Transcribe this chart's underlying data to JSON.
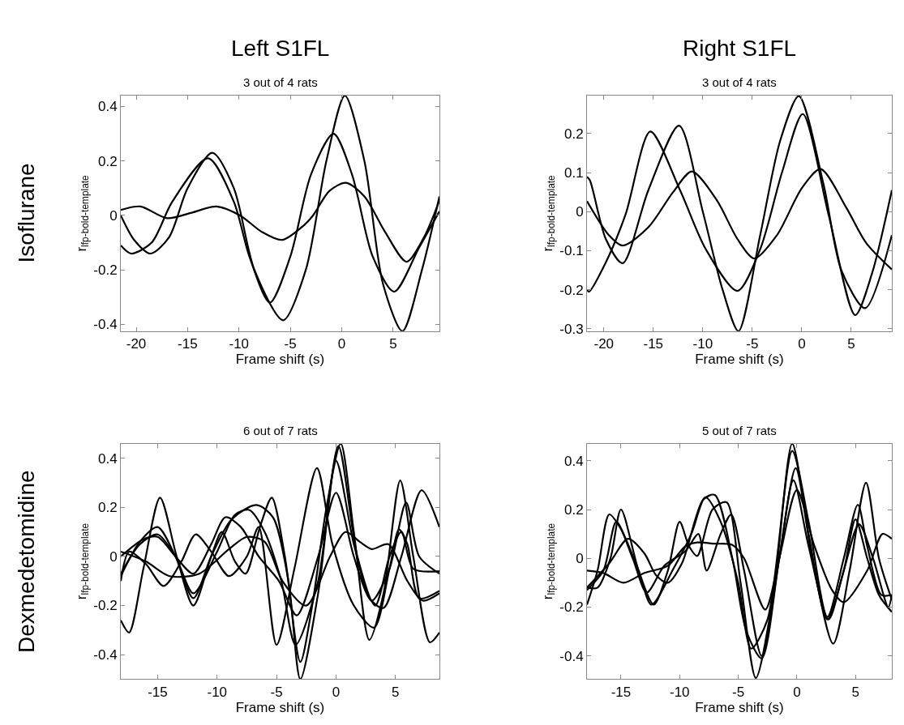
{
  "chart_data": [
    {
      "type": "line",
      "title": "3 out of 4 rats",
      "xlabel": "Frame shift (s)",
      "ylabel": "r$_{lfp-bold-template}$",
      "annotations": [
        "Left S1FL",
        "Isoflurane"
      ],
      "xlim": [
        -21.5,
        9.5
      ],
      "ylim": [
        -0.425,
        0.44
      ],
      "xticks": [
        -20,
        -15,
        -10,
        -5,
        0,
        5
      ],
      "yticks": [
        -0.4,
        -0.2,
        0,
        0.2,
        0.4
      ],
      "marker": "none",
      "line_style": "solid",
      "series": [
        {
          "color": "#000000",
          "x": [
            -21.5,
            -20.2,
            -18.6,
            -16.8,
            -15,
            -12.6,
            -10.5,
            -8.5,
            -5.7,
            -3.5,
            -1.5,
            0.3,
            2.2,
            4,
            5.9,
            7.8,
            9.5
          ],
          "values": [
            0.0,
            -0.09,
            -0.14,
            -0.08,
            0.1,
            0.23,
            0.1,
            -0.2,
            -0.385,
            -0.2,
            0.2,
            0.44,
            0.2,
            -0.25,
            -0.425,
            -0.2,
            0.07
          ]
        },
        {
          "color": "#000000",
          "x": [
            -21.5,
            -20.5,
            -18.5,
            -16.5,
            -13,
            -10.5,
            -9,
            -7,
            -5,
            -3,
            -0.8,
            1,
            3,
            5.1,
            7.5,
            9.5
          ],
          "values": [
            -0.11,
            -0.14,
            -0.1,
            0.05,
            0.21,
            0.05,
            -0.15,
            -0.32,
            -0.15,
            0.15,
            0.3,
            0.15,
            -0.15,
            -0.28,
            -0.12,
            0.015
          ]
        },
        {
          "color": "#000000",
          "x": [
            -21.5,
            -19.6,
            -17,
            -14.6,
            -12.2,
            -9.9,
            -7.8,
            -5.8,
            -3.8,
            -2.8,
            -1.2,
            0.4,
            2.2,
            4.2,
            6.3,
            8,
            9.5
          ],
          "values": [
            0.02,
            0.033,
            -0.01,
            0.01,
            0.033,
            0.0,
            -0.06,
            -0.09,
            -0.04,
            0.0,
            0.09,
            0.12,
            0.07,
            -0.06,
            -0.17,
            -0.08,
            0.055
          ]
        }
      ]
    },
    {
      "type": "line",
      "title": "3 out of 4 rats",
      "xlabel": "Frame shift (s)",
      "ylabel": "r$_{lfp-bold-template}$",
      "annotations": [
        "Right S1FL"
      ],
      "xlim": [
        -21.7,
        9.1
      ],
      "ylim": [
        -0.306,
        0.297
      ],
      "xticks": [
        -20,
        -15,
        -10,
        -5,
        0,
        5
      ],
      "yticks": [
        -0.3,
        -0.2,
        -0.1,
        0,
        0.1,
        0.2
      ],
      "marker": "none",
      "line_style": "solid",
      "series": [
        {
          "color": "#000000",
          "x": [
            -21.7,
            -21.5,
            -19.8,
            -17.8,
            -15.3,
            -12.3,
            -9.7,
            -6.5,
            -4.2,
            -2,
            0.1,
            2.7,
            5.4,
            7.1,
            9.1
          ],
          "values": [
            -0.2,
            -0.205,
            -0.13,
            -0.007,
            0.205,
            0.055,
            -0.096,
            -0.203,
            -0.096,
            0.1,
            0.25,
            -0.007,
            -0.265,
            -0.158,
            0.055
          ]
        },
        {
          "color": "#000000",
          "x": [
            -21.7,
            -21.4,
            -19.8,
            -18.1,
            -15.5,
            -12.4,
            -10,
            -8,
            -6.4,
            -4.2,
            -2.2,
            -0.3,
            2.2,
            4,
            6.4,
            9.1
          ],
          "values": [
            0.089,
            0.08,
            -0.07,
            -0.132,
            0.055,
            0.22,
            0.0,
            -0.2,
            -0.306,
            -0.06,
            0.18,
            0.296,
            0.07,
            -0.15,
            -0.247,
            -0.06
          ]
        },
        {
          "color": "#000000",
          "x": [
            -21.7,
            -19.5,
            -18.1,
            -15.5,
            -13,
            -11.1,
            -8.6,
            -6.5,
            -4.8,
            -2.5,
            0,
            1.9,
            4.5,
            6.5,
            9.1
          ],
          "values": [
            0.027,
            -0.06,
            -0.087,
            -0.04,
            0.05,
            0.103,
            0.03,
            -0.07,
            -0.12,
            -0.06,
            0.06,
            0.109,
            0.01,
            -0.08,
            -0.148
          ]
        }
      ]
    },
    {
      "type": "line",
      "title": "6 out of 7 rats",
      "xlabel": "Frame shift (s)",
      "ylabel": "r$_{lfp-bold-template}$",
      "annotations": [
        "Dexmedetomidine"
      ],
      "xlim": [
        -18.1,
        8.7
      ],
      "ylim": [
        -0.5,
        0.46
      ],
      "xticks": [
        -15,
        -10,
        -5,
        0,
        5
      ],
      "yticks": [
        -0.4,
        -0.2,
        0,
        0.2,
        0.4
      ],
      "marker": "none",
      "line_style": "solid",
      "series": [
        {
          "color": "#000000",
          "x": [
            -18.1,
            -17.4,
            -16.2,
            -14.8,
            -13.4,
            -12,
            -10.5,
            -9.6,
            -8.5,
            -7.6,
            -6.4,
            -5.4,
            -4.3,
            -3,
            -2,
            -0.8,
            0.4,
            1.5,
            2.8,
            4,
            5.4,
            6.5,
            7.9,
            8.7
          ],
          "values": [
            -0.26,
            -0.31,
            -0.05,
            0.24,
            0.0,
            -0.2,
            0.0,
            0.1,
            -0.02,
            -0.07,
            0.12,
            0.24,
            0.0,
            -0.43,
            -0.2,
            0.2,
            0.46,
            0.1,
            -0.34,
            -0.15,
            0.31,
            0.0,
            -0.35,
            -0.31
          ]
        },
        {
          "color": "#000000",
          "x": [
            -18.1,
            -17.4,
            -16,
            -14.5,
            -13,
            -11.8,
            -10.5,
            -9,
            -7.5,
            -6.5,
            -5,
            -3.5,
            -1.6,
            -0.3,
            1.5,
            3.2,
            4.5,
            5.3,
            6,
            7,
            8.7
          ],
          "values": [
            -0.1,
            0.02,
            -0.03,
            -0.12,
            -0.02,
            0.09,
            0.02,
            -0.08,
            0.0,
            0.12,
            -0.36,
            -0.05,
            0.36,
            0.05,
            -0.2,
            -0.29,
            -0.05,
            0.11,
            0.05,
            -0.17,
            -0.14
          ]
        },
        {
          "color": "#000000",
          "x": [
            -18.1,
            -16.5,
            -15,
            -13.5,
            -12,
            -10,
            -8.5,
            -7.3,
            -6,
            -4.6,
            -3.4,
            -1.5,
            0,
            1.5,
            3,
            4.5,
            5.9,
            7,
            8.7
          ],
          "values": [
            -0.07,
            0.05,
            0.09,
            0.0,
            -0.15,
            0.02,
            0.17,
            0.19,
            0.1,
            -0.1,
            -0.36,
            -0.1,
            0.39,
            0.05,
            -0.18,
            -0.05,
            0.22,
            0.0,
            -0.07
          ]
        },
        {
          "color": "#000000",
          "x": [
            -18.1,
            -16.5,
            -15,
            -13.5,
            -12,
            -10.5,
            -8.8,
            -6.7,
            -5.3,
            -4,
            -3,
            -1.5,
            0.2,
            1.8,
            3.3,
            4.5,
            5.5,
            6.5,
            8.7
          ],
          "values": [
            -0.08,
            0.06,
            0.12,
            0.0,
            -0.17,
            0.0,
            0.15,
            0.21,
            0.16,
            -0.1,
            -0.5,
            -0.15,
            0.45,
            0.0,
            -0.2,
            0.0,
            0.1,
            -0.05,
            -0.06
          ]
        },
        {
          "color": "#000000",
          "x": [
            -18.1,
            -16,
            -14,
            -11.5,
            -9,
            -7.5,
            -6,
            -4.5,
            -2.5,
            -0.5,
            0.8,
            2,
            3,
            4.4,
            6,
            7.3,
            8.7
          ],
          "values": [
            0.02,
            -0.02,
            -0.08,
            -0.07,
            0.03,
            0.08,
            0.06,
            -0.1,
            -0.2,
            0.0,
            0.1,
            0.06,
            0.03,
            0.05,
            -0.1,
            -0.18,
            -0.15
          ]
        },
        {
          "color": "#000000",
          "x": [
            -18.1,
            -16.2,
            -15,
            -13.5,
            -12,
            -10.5,
            -9.3,
            -8,
            -6.5,
            -4.8,
            -3.3,
            -1.5,
            0,
            1.5,
            2.8,
            4,
            5.5,
            7.2,
            8.7
          ],
          "values": [
            0.0,
            0.07,
            0.08,
            0.0,
            -0.07,
            0.05,
            0.16,
            0.12,
            0.0,
            -0.1,
            -0.24,
            0.0,
            0.26,
            0.0,
            -0.17,
            -0.21,
            0.0,
            0.27,
            0.12
          ]
        }
      ]
    },
    {
      "type": "line",
      "title": "5 out of 7 rats",
      "xlabel": "Frame shift (s)",
      "ylabel": "r$_{lfp-bold-template}$",
      "xlim": [
        -17.9,
        8.1
      ],
      "ylim": [
        -0.495,
        0.47
      ],
      "xticks": [
        -15,
        -10,
        -5,
        0,
        5
      ],
      "yticks": [
        -0.4,
        -0.2,
        0,
        0.2,
        0.4
      ],
      "marker": "none",
      "line_style": "solid",
      "series": [
        {
          "color": "#000000",
          "x": [
            -17.9,
            -17,
            -15.9,
            -15,
            -13.5,
            -12.2,
            -11,
            -10,
            -9.2,
            -8.5,
            -7.2,
            -6,
            -4.8,
            -3.5,
            -2,
            -0.4,
            1,
            2.6,
            4,
            5,
            6,
            7,
            8.1
          ],
          "values": [
            -0.12,
            -0.12,
            0.0,
            0.2,
            -0.05,
            -0.19,
            -0.05,
            0.15,
            0.05,
            0.01,
            0.2,
            0.23,
            -0.1,
            -0.49,
            -0.15,
            0.47,
            0.1,
            -0.25,
            -0.05,
            0.16,
            0.0,
            -0.15,
            -0.22
          ]
        },
        {
          "color": "#000000",
          "x": [
            -17.9,
            -17,
            -16,
            -15,
            -13.5,
            -12.4,
            -10.5,
            -9,
            -7.8,
            -6.5,
            -5,
            -3.9,
            -2.5,
            -0.4,
            1,
            2.6,
            4,
            5.2,
            6,
            7.2,
            8.1
          ],
          "values": [
            -0.19,
            -0.05,
            0.18,
            0.12,
            -0.05,
            -0.19,
            -0.04,
            0.1,
            0.25,
            0.15,
            -0.1,
            -0.37,
            -0.25,
            0.44,
            0.15,
            -0.24,
            0.0,
            0.22,
            0.05,
            -0.15,
            -0.15
          ]
        },
        {
          "color": "#000000",
          "x": [
            -17.9,
            -16.5,
            -14.8,
            -13,
            -11,
            -9.5,
            -8.5,
            -7,
            -5.5,
            -4.5,
            -2.7,
            -1.5,
            0,
            1.5,
            3,
            4,
            6,
            7.3,
            8.1
          ],
          "values": [
            -0.05,
            -0.06,
            -0.1,
            -0.06,
            -0.03,
            0.05,
            0.065,
            0.06,
            0.055,
            0.0,
            -0.21,
            0.0,
            0.28,
            0.05,
            -0.13,
            -0.18,
            -0.05,
            0.1,
            0.08
          ]
        },
        {
          "color": "#000000",
          "x": [
            -17.9,
            -16,
            -14.4,
            -13,
            -12,
            -11,
            -9.8,
            -8,
            -7,
            -5.5,
            -4.3,
            -3,
            -1.5,
            -0.1,
            1.3,
            3.1,
            4.5,
            5.9,
            7,
            8.1
          ],
          "values": [
            -0.12,
            -0.02,
            0.08,
            0.02,
            -0.07,
            -0.1,
            -0.02,
            0.24,
            0.26,
            0.0,
            -0.3,
            -0.41,
            0.0,
            0.37,
            0.0,
            -0.35,
            -0.05,
            0.31,
            0.0,
            -0.17
          ]
        },
        {
          "color": "#000000",
          "x": [
            -17.9,
            -16.5,
            -15.4,
            -14,
            -12.8,
            -11.3,
            -9.5,
            -8.4,
            -7.7,
            -6.5,
            -5.6,
            -4.5,
            -3,
            -1.5,
            -0.3,
            1,
            2.7,
            4,
            5.3,
            6.5,
            7.8,
            8.1
          ],
          "values": [
            -0.13,
            -0.05,
            0.15,
            0.0,
            -0.14,
            -0.03,
            0.03,
            0.1,
            -0.05,
            0.1,
            0.18,
            -0.05,
            -0.4,
            0.0,
            0.32,
            0.05,
            -0.25,
            -0.05,
            0.14,
            0.0,
            -0.2,
            -0.15
          ]
        }
      ]
    }
  ]
}
